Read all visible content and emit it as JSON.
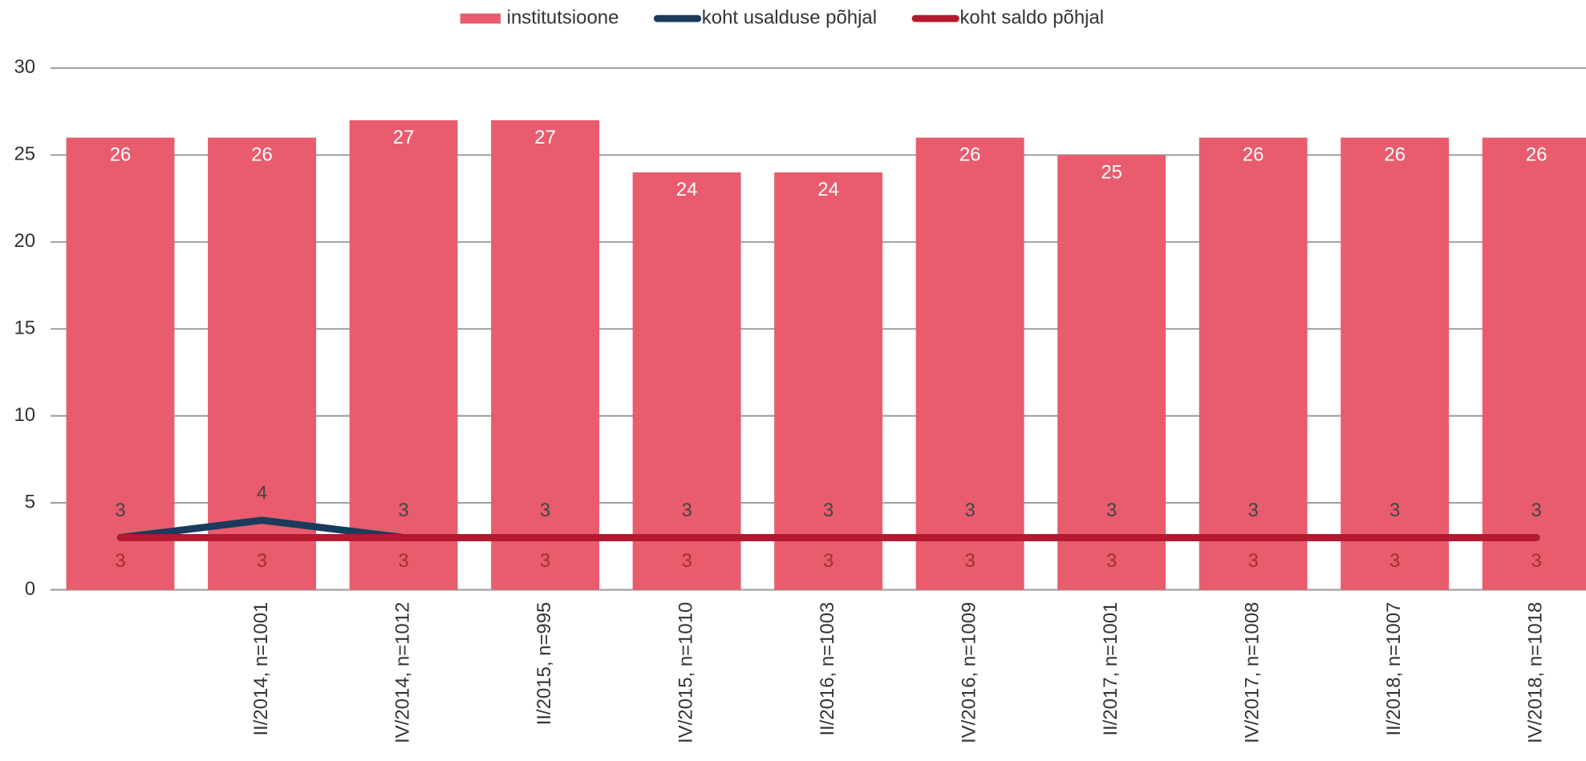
{
  "chart_data": {
    "type": "bar",
    "categories": [
      null,
      "II/2014, n=1001",
      "IV/2014, n=1012",
      "II/2015, n=995",
      "IV/2015, n=1010",
      "II/2016, n=1003",
      "IV/2016, n=1009",
      "II/2017, n=1001",
      "IV/2017, n=1008",
      "II/2018, n=1007",
      "IV/2018, n=1018"
    ],
    "series": [
      {
        "name": "institutsioone",
        "type": "bar",
        "color": "#e85c6e",
        "values": [
          26,
          26,
          27,
          27,
          24,
          24,
          26,
          25,
          26,
          26,
          26
        ]
      },
      {
        "name": "koht usalduse põhjal",
        "type": "line",
        "color": "#1b3a5c",
        "values": [
          3,
          4,
          3,
          3,
          3,
          3,
          3,
          3,
          3,
          3,
          3
        ]
      },
      {
        "name": "koht saldo põhjal",
        "type": "line",
        "color": "#b5192f",
        "values": [
          3,
          3,
          3,
          3,
          3,
          3,
          3,
          3,
          3,
          3,
          3
        ]
      }
    ],
    "ylim": [
      0,
      30
    ],
    "yticks": [
      0,
      5,
      10,
      15,
      20,
      25,
      30
    ],
    "grid": true,
    "legend": "top"
  }
}
